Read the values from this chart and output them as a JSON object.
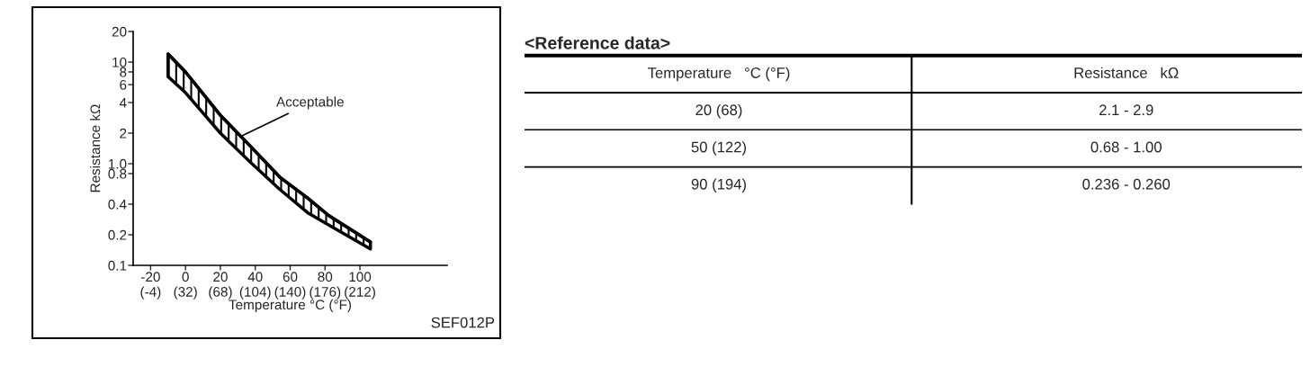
{
  "chart_data": [
    {
      "type": "line",
      "xlabel": "Temperature °C (°F)",
      "ylabel": "Resistance kΩ",
      "log": "y",
      "xlim": [
        -30,
        150
      ],
      "ylim": [
        0.1,
        20
      ],
      "xticks": [
        -20,
        0,
        20,
        40,
        60,
        80,
        100
      ],
      "x2lim": [
        -22,
        302
      ],
      "x2ticks": [
        {
          "value": -4,
          "label": "(-4)"
        },
        {
          "value": 32,
          "label": "(32)"
        },
        {
          "value": 68,
          "label": "(68)"
        },
        {
          "value": 104,
          "label": "(104)"
        },
        {
          "value": 140,
          "label": "(140)"
        },
        {
          "value": 176,
          "label": "(176)"
        },
        {
          "value": 212,
          "label": "(212)"
        }
      ],
      "yticks": [
        {
          "value": 0.1,
          "label": "0.1"
        },
        {
          "value": 0.2,
          "label": "0.2"
        },
        {
          "value": 0.4,
          "label": "0.4"
        },
        {
          "value": 0.8,
          "label": "0.8"
        },
        {
          "value": 1,
          "label": "1.0"
        },
        2,
        4,
        6,
        8,
        10,
        20
      ],
      "x": [
        -10,
        0,
        20,
        37,
        54,
        70,
        82,
        106
      ],
      "series": [
        {
          "color": "#000000",
          "values": [
            12,
            8.0,
            3.0,
            1.5,
            0.74,
            0.46,
            0.31,
            0.17
          ],
          "upper": [
            12,
            8.0,
            3.0,
            1.5,
            0.74,
            0.46,
            0.31,
            0.17
          ],
          "lower": [
            7.2,
            5.0,
            2.0,
            1.04,
            0.56,
            0.33,
            0.25,
            0.145
          ]
        }
      ],
      "annotations": [
        {
          "text": "Acceptable",
          "x": 30,
          "y": 1.8
        },
        "SEF012P"
      ],
      "grid": false
    },
    {
      "type": "other",
      "title": "<Reference data>",
      "annotations": [
        "Temperature   °C (°F)",
        "Resistance   kΩ",
        "20 (68)",
        "2.1 - 2.9",
        "50 (122)",
        "0.68 - 1.00",
        "90 (194)",
        "0.236 - 0.260"
      ]
    }
  ]
}
